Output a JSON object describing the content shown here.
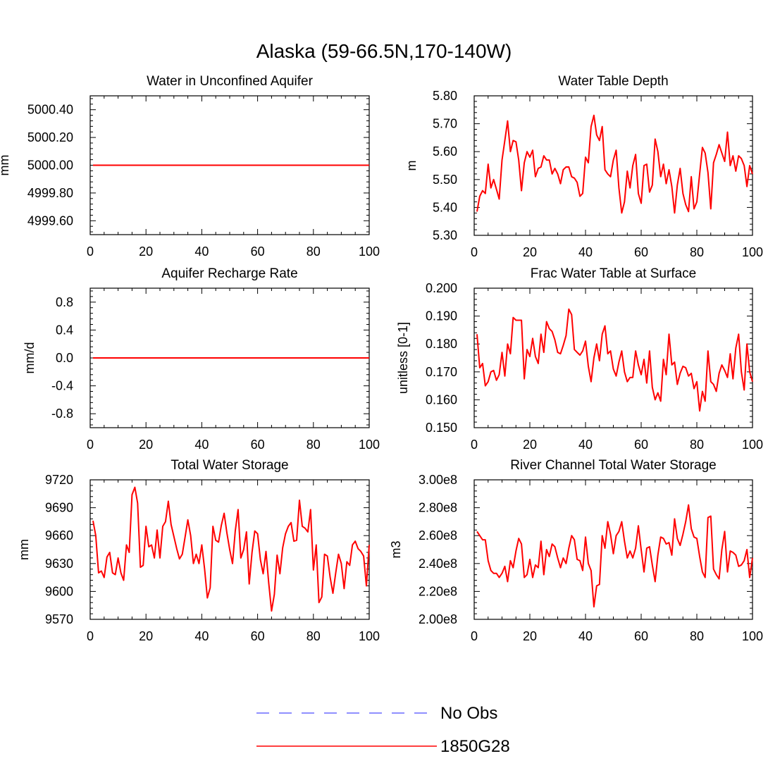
{
  "figure": {
    "title": "Alaska (59-66.5N,170-140W)",
    "series_color": "#ff0000",
    "obs_color": "#6a6aff"
  },
  "legend": {
    "items": [
      {
        "label": "No Obs",
        "style": "dashed",
        "color": "#6a6aff"
      },
      {
        "label": "1850G28",
        "style": "solid",
        "color": "#ff0000"
      }
    ]
  },
  "chart_data": [
    {
      "type": "line",
      "title": "Water in Unconfined Aquifer",
      "xlabel": "",
      "ylabel": "mm",
      "xlim": [
        0,
        100
      ],
      "ylim": [
        4999.5,
        5000.5
      ],
      "yticks": [
        4999.6,
        4999.8,
        5000.0,
        5000.2,
        5000.4
      ],
      "ytick_labels": [
        "4999.60",
        "4999.80",
        "5000.00",
        "5000.20",
        "5000.40"
      ],
      "xticks": [
        0,
        20,
        40,
        60,
        80,
        100
      ],
      "series": [
        {
          "name": "1850G28",
          "constant": 5000.0
        }
      ]
    },
    {
      "type": "line",
      "title": "Water Table Depth",
      "xlabel": "",
      "ylabel": "m",
      "xlim": [
        0,
        100
      ],
      "ylim": [
        5.3,
        5.8
      ],
      "yticks": [
        5.3,
        5.4,
        5.5,
        5.6,
        5.7,
        5.8
      ],
      "ytick_labels": [
        "5.30",
        "5.40",
        "5.50",
        "5.60",
        "5.70",
        "5.80"
      ],
      "xticks": [
        0,
        20,
        40,
        60,
        80,
        100
      ],
      "series": [
        {
          "name": "1850G28",
          "values": [
            5.385,
            5.44,
            5.46,
            5.45,
            5.555,
            5.47,
            5.5,
            5.465,
            5.43,
            5.57,
            5.64,
            5.71,
            5.6,
            5.64,
            5.635,
            5.57,
            5.46,
            5.56,
            5.6,
            5.58,
            5.605,
            5.51,
            5.54,
            5.545,
            5.585,
            5.57,
            5.57,
            5.52,
            5.54,
            5.52,
            5.485,
            5.535,
            5.545,
            5.545,
            5.51,
            5.505,
            5.49,
            5.44,
            5.45,
            5.58,
            5.56,
            5.69,
            5.73,
            5.66,
            5.64,
            5.69,
            5.535,
            5.52,
            5.51,
            5.57,
            5.605,
            5.47,
            5.38,
            5.42,
            5.53,
            5.47,
            5.55,
            5.59,
            5.45,
            5.415,
            5.55,
            5.555,
            5.455,
            5.48,
            5.645,
            5.6,
            5.51,
            5.555,
            5.485,
            5.535,
            5.475,
            5.38,
            5.48,
            5.54,
            5.45,
            5.41,
            5.385,
            5.51,
            5.395,
            5.42,
            5.52,
            5.615,
            5.595,
            5.525,
            5.395,
            5.56,
            5.59,
            5.625,
            5.595,
            5.565,
            5.67,
            5.55,
            5.585,
            5.53,
            5.585,
            5.575,
            5.55,
            5.475,
            5.55,
            5.52
          ]
        }
      ]
    },
    {
      "type": "line",
      "title": "Aquifer Recharge Rate",
      "xlabel": "",
      "ylabel": "mm/d",
      "xlim": [
        0,
        100
      ],
      "ylim": [
        -1.0,
        1.0
      ],
      "yticks": [
        -0.8,
        -0.4,
        0.0,
        0.4,
        0.8
      ],
      "ytick_labels": [
        "-0.8",
        "-0.4",
        "0.0",
        "0.4",
        "0.8"
      ],
      "xticks": [
        0,
        20,
        40,
        60,
        80,
        100
      ],
      "series": [
        {
          "name": "1850G28",
          "constant": 0.0
        }
      ]
    },
    {
      "type": "line",
      "title": "Frac Water Table at Surface",
      "xlabel": "",
      "ylabel": "unitless [0-1]",
      "xlim": [
        0,
        100
      ],
      "ylim": [
        0.15,
        0.2
      ],
      "yticks": [
        0.15,
        0.16,
        0.17,
        0.18,
        0.19,
        0.2
      ],
      "ytick_labels": [
        "0.150",
        "0.160",
        "0.170",
        "0.180",
        "0.190",
        "0.200"
      ],
      "xticks": [
        0,
        20,
        40,
        60,
        80,
        100
      ],
      "series": [
        {
          "name": "1850G28",
          "values": [
            0.1835,
            0.1715,
            0.173,
            0.165,
            0.1665,
            0.17,
            0.1705,
            0.167,
            0.169,
            0.177,
            0.1685,
            0.18,
            0.1765,
            0.1895,
            0.1885,
            0.1885,
            0.1885,
            0.1675,
            0.178,
            0.1755,
            0.182,
            0.1755,
            0.173,
            0.1835,
            0.177,
            0.188,
            0.1855,
            0.1845,
            0.1815,
            0.177,
            0.1765,
            0.1795,
            0.183,
            0.1925,
            0.1905,
            0.178,
            0.177,
            0.176,
            0.1775,
            0.181,
            0.172,
            0.1665,
            0.175,
            0.18,
            0.174,
            0.1835,
            0.1865,
            0.1765,
            0.1775,
            0.171,
            0.1685,
            0.1735,
            0.1775,
            0.17,
            0.1665,
            0.168,
            0.168,
            0.1775,
            0.1725,
            0.169,
            0.1745,
            0.166,
            0.1775,
            0.1645,
            0.16,
            0.1625,
            0.1595,
            0.1745,
            0.169,
            0.1835,
            0.1725,
            0.1735,
            0.1655,
            0.1695,
            0.172,
            0.1715,
            0.1685,
            0.1695,
            0.164,
            0.1665,
            0.156,
            0.163,
            0.1595,
            0.1775,
            0.1665,
            0.1655,
            0.163,
            0.1695,
            0.1725,
            0.1705,
            0.168,
            0.1765,
            0.1675,
            0.1785,
            0.1835,
            0.17,
            0.1635,
            0.18,
            0.17,
            0.1665
          ]
        }
      ]
    },
    {
      "type": "line",
      "title": "Total Water Storage",
      "xlabel": "",
      "ylabel": "mm",
      "xlim": [
        0,
        100
      ],
      "ylim": [
        9570,
        9720
      ],
      "yticks": [
        9570,
        9600,
        9630,
        9660,
        9690,
        9720
      ],
      "ytick_labels": [
        "9570",
        "9600",
        "9630",
        "9660",
        "9690",
        "9720"
      ],
      "xticks": [
        0,
        20,
        40,
        60,
        80,
        100
      ],
      "series": [
        {
          "name": "1850G28",
          "values": [
            9676,
            9660,
            9620,
            9622,
            9615,
            9637,
            9642,
            9620,
            9618,
            9636,
            9620,
            9612,
            9650,
            9642,
            9704,
            9712,
            9695,
            9626,
            9628,
            9670,
            9648,
            9650,
            9636,
            9666,
            9636,
            9670,
            9675,
            9697,
            9672,
            9659,
            9646,
            9635,
            9640,
            9658,
            9677,
            9660,
            9630,
            9640,
            9630,
            9650,
            9624,
            9593,
            9604,
            9670,
            9655,
            9653,
            9671,
            9684,
            9663,
            9645,
            9630,
            9665,
            9688,
            9636,
            9645,
            9664,
            9608,
            9642,
            9665,
            9662,
            9634,
            9619,
            9643,
            9609,
            9579,
            9597,
            9639,
            9619,
            9647,
            9662,
            9670,
            9674,
            9654,
            9655,
            9698,
            9670,
            9668,
            9664,
            9688,
            9623,
            9650,
            9588,
            9594,
            9640,
            9638,
            9615,
            9598,
            9620,
            9640,
            9630,
            9603,
            9632,
            9628,
            9650,
            9654,
            9646,
            9643,
            9638,
            9606,
            9650
          ]
        }
      ]
    },
    {
      "type": "line",
      "title": "River Channel Total Water Storage",
      "xlabel": "",
      "ylabel": "m3",
      "xlim": [
        0,
        100
      ],
      "ylim": [
        200000000,
        300000000
      ],
      "yticks": [
        200000000,
        220000000,
        240000000,
        260000000,
        280000000,
        300000000
      ],
      "ytick_labels": [
        "2.00e8",
        "2.20e8",
        "2.40e8",
        "2.60e8",
        "2.80e8",
        "3.00e8"
      ],
      "xticks": [
        0,
        20,
        40,
        60,
        80,
        100
      ],
      "series": [
        {
          "name": "1850G28",
          "values": [
            263000000,
            260000000,
            257000000,
            257000000,
            242000000,
            235000000,
            233000000,
            233000000,
            230000000,
            233000000,
            238000000,
            227000000,
            242000000,
            237000000,
            249000000,
            258000000,
            254000000,
            230000000,
            232000000,
            243000000,
            230000000,
            239000000,
            237000000,
            256000000,
            232000000,
            250000000,
            245000000,
            254000000,
            252000000,
            244000000,
            237000000,
            244000000,
            240000000,
            251000000,
            260000000,
            257000000,
            243000000,
            242000000,
            235000000,
            259000000,
            240000000,
            235000000,
            209000000,
            224000000,
            225000000,
            260000000,
            251000000,
            270000000,
            261000000,
            247000000,
            260000000,
            263000000,
            270000000,
            256000000,
            244000000,
            249000000,
            244000000,
            251000000,
            267000000,
            250000000,
            234000000,
            251000000,
            252000000,
            239000000,
            227000000,
            246000000,
            259000000,
            258000000,
            254000000,
            255000000,
            246000000,
            272000000,
            258000000,
            253000000,
            261000000,
            270000000,
            282000000,
            265000000,
            259000000,
            258000000,
            245000000,
            234000000,
            230000000,
            273000000,
            274000000,
            236000000,
            232000000,
            229000000,
            250000000,
            263000000,
            234000000,
            249000000,
            248000000,
            246000000,
            238000000,
            239000000,
            242000000,
            250000000,
            230000000,
            244000000
          ]
        }
      ]
    }
  ]
}
